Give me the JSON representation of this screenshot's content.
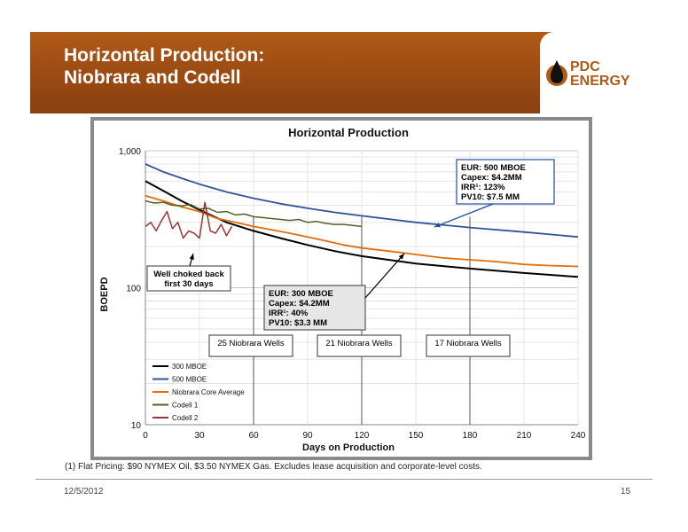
{
  "slide": {
    "title": "Horizontal Production:\nNiobrara and Codell",
    "logo_line1": "PDC",
    "logo_line2": "ENERGY",
    "footnote": "(1) Flat Pricing: $90 NYMEX Oil, $3.50 NYMEX Gas. Excludes lease acquisition and corporate-level costs.",
    "date": "12/5/2012",
    "page_number": "15"
  },
  "colors": {
    "banner": "#a0501a",
    "mboe300": "#000000",
    "mboe500": "#2f5597",
    "niobrara_core": "#e36c0a",
    "codell1": "#4f6228",
    "codell2": "#953735",
    "annotation_border": "#1f4e96"
  },
  "chart_data": {
    "type": "line",
    "title": "Horizontal Production",
    "xlabel": "Days on Production",
    "ylabel": "BOEPD",
    "x_ticks": [
      "0",
      "30",
      "60",
      "90",
      "120",
      "150",
      "180",
      "210",
      "240"
    ],
    "y_ticks": [
      "10",
      "100",
      "1,000"
    ],
    "y_scale": "log",
    "xlim": [
      0,
      240
    ],
    "ylim": [
      10,
      1000
    ],
    "grid": true,
    "legend_position": "bottom-left",
    "series": [
      {
        "name": "300 MBOE",
        "x": [
          0,
          10,
          20,
          30,
          45,
          60,
          75,
          90,
          105,
          120,
          150,
          180,
          210,
          240
        ],
        "y": [
          600,
          510,
          430,
          370,
          300,
          260,
          230,
          205,
          185,
          170,
          150,
          138,
          128,
          120
        ]
      },
      {
        "name": "500 MBOE",
        "x": [
          0,
          10,
          20,
          30,
          45,
          60,
          75,
          90,
          105,
          120,
          150,
          180,
          210,
          240
        ],
        "y": [
          800,
          700,
          630,
          570,
          500,
          450,
          410,
          380,
          355,
          335,
          300,
          275,
          255,
          235
        ]
      },
      {
        "name": "Niobrara Core Average",
        "x": [
          0,
          10,
          20,
          30,
          40,
          50,
          60,
          70,
          80,
          90,
          100,
          110,
          120,
          135,
          150,
          165,
          180,
          195,
          210,
          225,
          240
        ],
        "y": [
          470,
          430,
          390,
          360,
          320,
          300,
          280,
          265,
          250,
          235,
          220,
          205,
          195,
          185,
          175,
          165,
          160,
          155,
          148,
          145,
          143
        ]
      },
      {
        "name": "Codell 1",
        "x": [
          0,
          5,
          10,
          15,
          20,
          25,
          30,
          35,
          40,
          45,
          50,
          55,
          60,
          65,
          70,
          75,
          80,
          85,
          90,
          95,
          100,
          105,
          110,
          115,
          120
        ],
        "y": [
          430,
          415,
          420,
          400,
          395,
          405,
          375,
          380,
          355,
          360,
          340,
          345,
          330,
          325,
          320,
          315,
          310,
          315,
          300,
          305,
          295,
          290,
          290,
          285,
          280
        ]
      },
      {
        "name": "Codell 2",
        "x": [
          0,
          3,
          6,
          9,
          12,
          15,
          18,
          21,
          24,
          27,
          30,
          33,
          36,
          39,
          42,
          45,
          48
        ],
        "y": [
          280,
          300,
          260,
          310,
          360,
          270,
          300,
          230,
          260,
          250,
          230,
          420,
          260,
          250,
          290,
          240,
          280
        ]
      }
    ],
    "annotations": {
      "eur500": [
        "EUR: 500 MBOE",
        "Capex: $4.2MM",
        "IRR¹: 123%",
        "PV10: $7.5 MM"
      ],
      "eur300": [
        "EUR: 300 MBOE",
        "Capex: $4.2MM",
        "IRR¹: 40%",
        "PV10: $3.3 MM"
      ],
      "choked": [
        "Well choked back",
        "first 30 days"
      ],
      "wells_25": "25 Niobrara Wells",
      "wells_21": "21 Niobrara Wells",
      "wells_17": "17 Niobrara Wells"
    },
    "well_markers": [
      {
        "label": "25 Niobrara Wells",
        "x": 60
      },
      {
        "label": "21 Niobrara Wells",
        "x": 120
      },
      {
        "label": "17 Niobrara Wells",
        "x": 180
      }
    ]
  }
}
